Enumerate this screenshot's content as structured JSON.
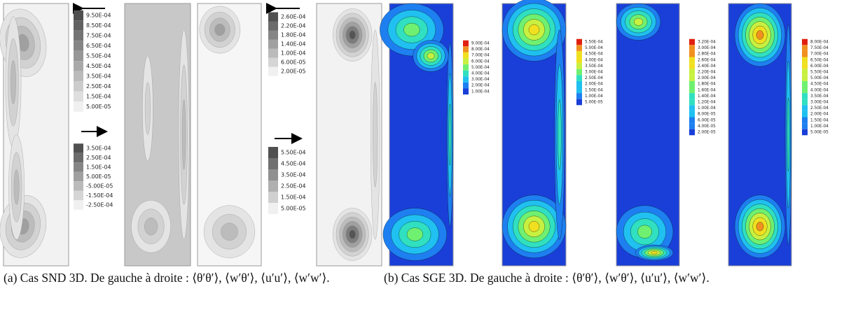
{
  "colorbars_a": [
    [
      "9.50E-04",
      "8.50E-04",
      "7.50E-04",
      "6.50E-04",
      "5.50E-04",
      "4.50E-04",
      "3.50E-04",
      "2.50E-04",
      "1.50E-04",
      "5.00E-05"
    ],
    [
      "3.50E-04",
      "2.50E-04",
      "1.50E-04",
      "5.00E-05",
      "-5.00E-05",
      "-1.50E-04",
      "-2.50E-04"
    ],
    [
      "2.60E-04",
      "2.20E-04",
      "1.80E-04",
      "1.40E-04",
      "1.00E-04",
      "6.00E-05",
      "2.00E-05"
    ],
    [
      "5.50E-04",
      "4.50E-04",
      "3.50E-04",
      "2.50E-04",
      "1.50E-04",
      "5.00E-05"
    ]
  ],
  "colorbars_b": [
    [
      "9.00E-04",
      "8.00E-04",
      "7.00E-04",
      "6.00E-04",
      "5.00E-04",
      "4.00E-04",
      "3.00E-04",
      "2.00E-04",
      "1.00E-04"
    ],
    [
      "5.50E-04",
      "5.00E-04",
      "4.50E-04",
      "4.00E-04",
      "3.50E-04",
      "3.00E-04",
      "2.50E-04",
      "2.00E-04",
      "1.50E-04",
      "1.00E-04",
      "5.00E-05"
    ],
    [
      "3.20E-04",
      "3.00E-04",
      "2.80E-04",
      "2.60E-04",
      "2.40E-04",
      "2.20E-04",
      "2.00E-04",
      "1.80E-04",
      "1.60E-04",
      "1.40E-04",
      "1.20E-04",
      "1.00E-04",
      "8.00E-05",
      "6.00E-05",
      "4.00E-05",
      "2.00E-05"
    ],
    [
      "8.00E-04",
      "7.50E-04",
      "7.00E-04",
      "6.50E-04",
      "6.00E-04",
      "5.50E-04",
      "5.00E-04",
      "4.50E-04",
      "4.00E-04",
      "3.50E-04",
      "3.00E-04",
      "2.50E-04",
      "2.00E-04",
      "1.50E-04",
      "1.00E-04",
      "5.00E-05"
    ]
  ],
  "captions": {
    "a": "(a) Cas SND 3D. De gauche à droite : ⟨θ′θ′⟩, ⟨w′θ′⟩, ⟨u′u′⟩, ⟨w′w′⟩.",
    "b": "(b) Cas SGE 3D. De gauche à droite : ⟨θ′θ′⟩, ⟨w′θ′⟩, ⟨u′u′⟩, ⟨w′w′⟩."
  }
}
